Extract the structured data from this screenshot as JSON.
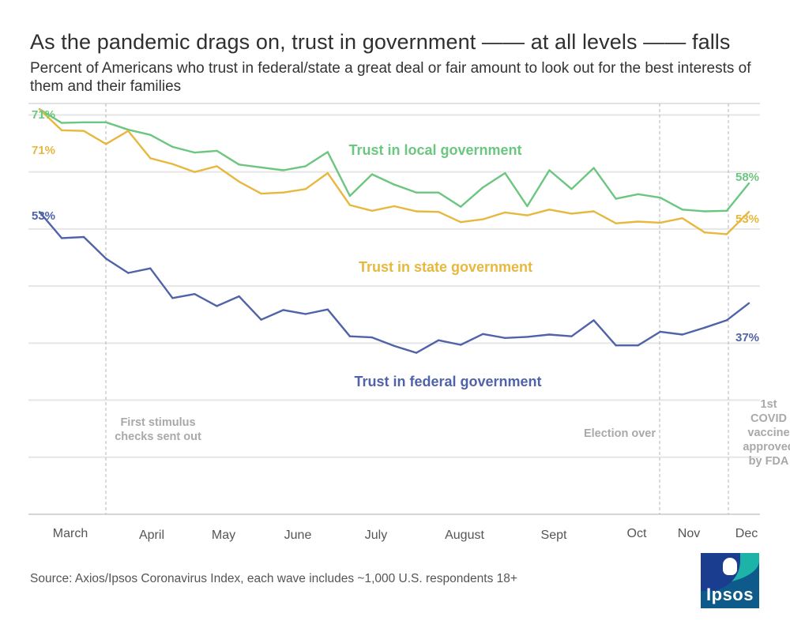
{
  "chart_data": {
    "type": "line",
    "title": "As the pandemic drags on, trust in government —— at all levels —— falls",
    "subtitle": "Percent of Americans who trust in federal/state a great deal or fair amount to look out for the best interests of them and their families",
    "ylim": [
      0,
      72
    ],
    "months": [
      "March",
      "April",
      "May",
      "June",
      "July",
      "August",
      "Sept",
      "Oct",
      "Nov",
      "Dec"
    ],
    "series": [
      {
        "name": "Trust in local government",
        "color": "#6cc680",
        "start_label": "71%",
        "end_label": "58%",
        "values": [
          71,
          68.6,
          68.7,
          68.7,
          67.4,
          66.5,
          64.4,
          63.4,
          63.7,
          61.3,
          60.8,
          60.3,
          61,
          63.5,
          55.8,
          59.6,
          57.8,
          56.4,
          56.4,
          53.9,
          57.3,
          59.8,
          54,
          60.3,
          57,
          60.7,
          55.3,
          56.1,
          55.5,
          53.4,
          53.1,
          53.2,
          58
        ]
      },
      {
        "name": "Trust in state government",
        "color": "#e7b83e",
        "start_label": "71%",
        "end_label": "53%",
        "values": [
          71,
          67.3,
          67.2,
          64.9,
          67.2,
          62.4,
          61.4,
          60,
          61,
          58.3,
          56.2,
          56.4,
          57,
          59.8,
          54.2,
          53.2,
          54,
          53.1,
          53,
          51.2,
          51.7,
          52.9,
          52.4,
          53.4,
          52.7,
          53.1,
          51,
          51.3,
          51.1,
          51.9,
          49.4,
          49.1,
          53
        ]
      },
      {
        "name": "Trust in federal government",
        "color": "#5063a8",
        "start_label": "53%",
        "end_label": "37%",
        "values": [
          53,
          48.4,
          48.6,
          44.8,
          42.3,
          43.1,
          37.9,
          38.6,
          36.5,
          38.2,
          34.1,
          35.8,
          35.1,
          35.9,
          31.2,
          31,
          29.5,
          28.3,
          30.5,
          29.7,
          31.6,
          30.9,
          31.1,
          31.5,
          31.2,
          34,
          29.6,
          29.6,
          32,
          31.5,
          32.7,
          34,
          37
        ]
      }
    ],
    "annotations": [
      {
        "text": [
          "First stimulus",
          "checks sent out"
        ]
      },
      {
        "text": [
          "Election over"
        ]
      },
      {
        "text": [
          "1st",
          "COVID",
          "vaccine",
          "approved",
          "by FDA"
        ]
      }
    ]
  },
  "footer": {
    "source": "Source: Axios/Ipsos Coronavirus Index, each wave includes ~1,000 U.S. respondents 18+",
    "logo_text": "Ipsos"
  }
}
